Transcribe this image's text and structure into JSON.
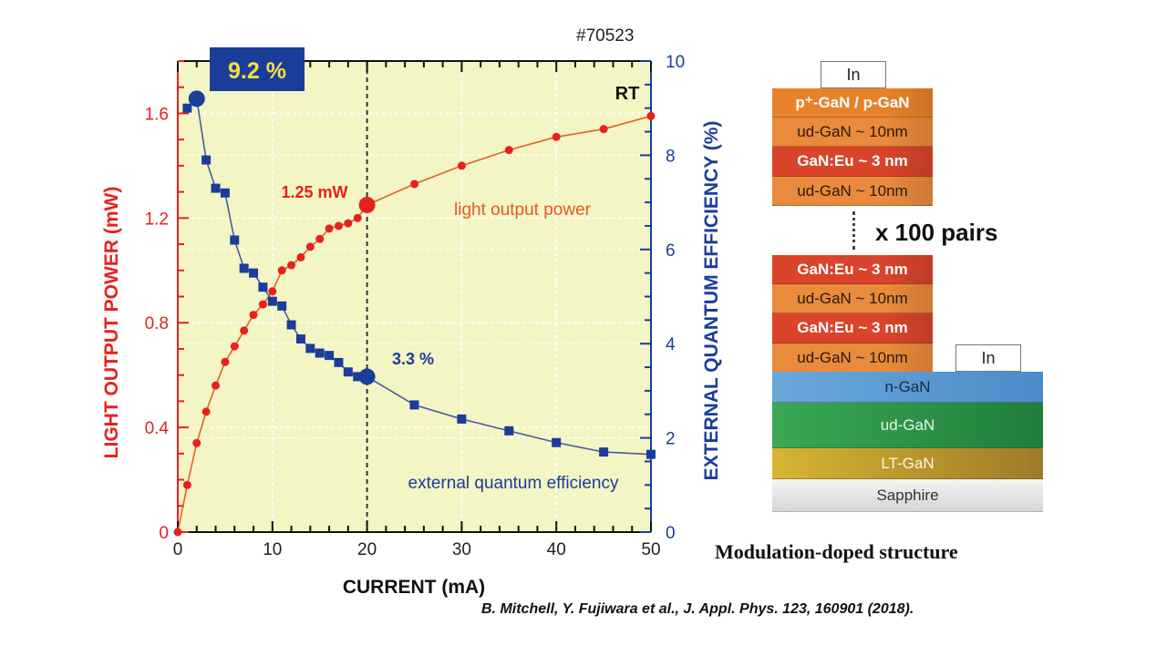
{
  "sample_id": "#70523",
  "citation": "B. Mitchell, Y. Fujiwara et al., J. Appl. Phys. 123, 160901 (2018).",
  "chart_data": {
    "type": "line",
    "title": "",
    "xlabel": "CURRENT  (mA)",
    "ylabel_left": "LIGHT OUTPUT POWER  (mW)",
    "ylabel_right": "EXTERNAL QUANTUM EFFICIENCY  (%)",
    "xlim": [
      0,
      50
    ],
    "ylim_left": [
      0,
      1.8
    ],
    "ylim_right": [
      0,
      10
    ],
    "x_ticks": [
      0,
      10,
      20,
      30,
      40,
      50
    ],
    "y_ticks_left": [
      0,
      0.4,
      0.8,
      1.2,
      1.6
    ],
    "y_ticks_right": [
      0,
      2,
      4,
      6,
      8,
      10
    ],
    "grid": true,
    "background": "#f3f5c4",
    "reference_line_x": 20,
    "condition_label": "RT",
    "series": [
      {
        "name": "light output power",
        "axis": "left",
        "color": "#e8201e",
        "marker": "circle",
        "x": [
          0,
          1,
          2,
          3,
          4,
          5,
          6,
          7,
          8,
          9,
          10,
          11,
          12,
          13,
          14,
          15,
          16,
          17,
          18,
          19,
          20,
          25,
          30,
          35,
          40,
          45,
          50
        ],
        "y": [
          0,
          0.18,
          0.34,
          0.46,
          0.56,
          0.65,
          0.71,
          0.77,
          0.83,
          0.87,
          0.92,
          1.0,
          1.02,
          1.05,
          1.09,
          1.12,
          1.16,
          1.17,
          1.18,
          1.2,
          1.25,
          1.33,
          1.4,
          1.46,
          1.51,
          1.54,
          1.59
        ]
      },
      {
        "name": "external quantum efficiency",
        "axis": "right",
        "color": "#1a3d9a",
        "marker": "square",
        "x": [
          1,
          2,
          3,
          4,
          5,
          6,
          7,
          8,
          9,
          10,
          11,
          12,
          13,
          14,
          15,
          16,
          17,
          18,
          19,
          20,
          25,
          30,
          35,
          40,
          45,
          50
        ],
        "y": [
          9.0,
          9.2,
          7.9,
          7.3,
          7.2,
          6.2,
          5.6,
          5.5,
          5.2,
          4.9,
          4.8,
          4.4,
          4.1,
          3.9,
          3.8,
          3.75,
          3.6,
          3.4,
          3.3,
          3.3,
          2.7,
          2.4,
          2.15,
          1.9,
          1.7,
          1.65
        ]
      }
    ],
    "highlights": [
      {
        "series": "light output power",
        "x": 20,
        "y": 1.25,
        "label": "1.25 mW"
      },
      {
        "series": "external quantum efficiency",
        "x": 20,
        "y": 3.3,
        "label": "3.3 %"
      },
      {
        "series": "external quantum efficiency",
        "x": 2,
        "y": 9.2,
        "label": "9.2 %"
      }
    ],
    "annotations": {
      "peak_box": "9.2 %",
      "power_point": "1.25 mW",
      "eqe_point": "3.3 %",
      "power_curve": "light output power",
      "eqe_curve": "external quantum efficiency"
    }
  },
  "structure": {
    "caption": "Modulation-doped structure",
    "repeat_label": "x 100 pairs",
    "top_contact": "In",
    "side_contact": "In",
    "top_layers": [
      {
        "label": "p⁺-GaN / p-GaN",
        "color": "#e8822a",
        "text_color": "#ffffff",
        "bold": true
      },
      {
        "label": "ud-GaN ~ 10nm",
        "color": "#ea8a3c",
        "text_color": "#2a1a10",
        "bold": false
      },
      {
        "label": "GaN:Eu ~ 3 nm",
        "color": "#d9442a",
        "text_color": "#ffffff",
        "bold": true
      },
      {
        "label": "ud-GaN ~ 10nm",
        "color": "#ea8a3c",
        "text_color": "#2a1a10",
        "bold": false
      }
    ],
    "mid_layers": [
      {
        "label": "GaN:Eu ~ 3 nm",
        "color": "#d9442a",
        "text_color": "#ffffff",
        "bold": true
      },
      {
        "label": "ud-GaN ~ 10nm",
        "color": "#ea8a3c",
        "text_color": "#2a1a10",
        "bold": false
      },
      {
        "label": "GaN:Eu ~ 3 nm",
        "color": "#d9442a",
        "text_color": "#ffffff",
        "bold": true
      },
      {
        "label": "ud-GaN ~ 10nm",
        "color": "#ea8a3c",
        "text_color": "#2a1a10",
        "bold": false
      }
    ],
    "base_layers": [
      {
        "label": "n-GaN",
        "color": "#5b9bd5",
        "text_color": "#1a2a40",
        "bold": false
      },
      {
        "label": "ud-GaN",
        "color": "#2e9a46",
        "text_color": "#e8f5e8",
        "bold": false
      },
      {
        "label": "LT-GaN",
        "color": "#c9a032",
        "text_color": "#fff6dc",
        "bold": false
      },
      {
        "label": "Sapphire",
        "color": "#e4e4e4",
        "text_color": "#333333",
        "bold": false
      }
    ]
  }
}
